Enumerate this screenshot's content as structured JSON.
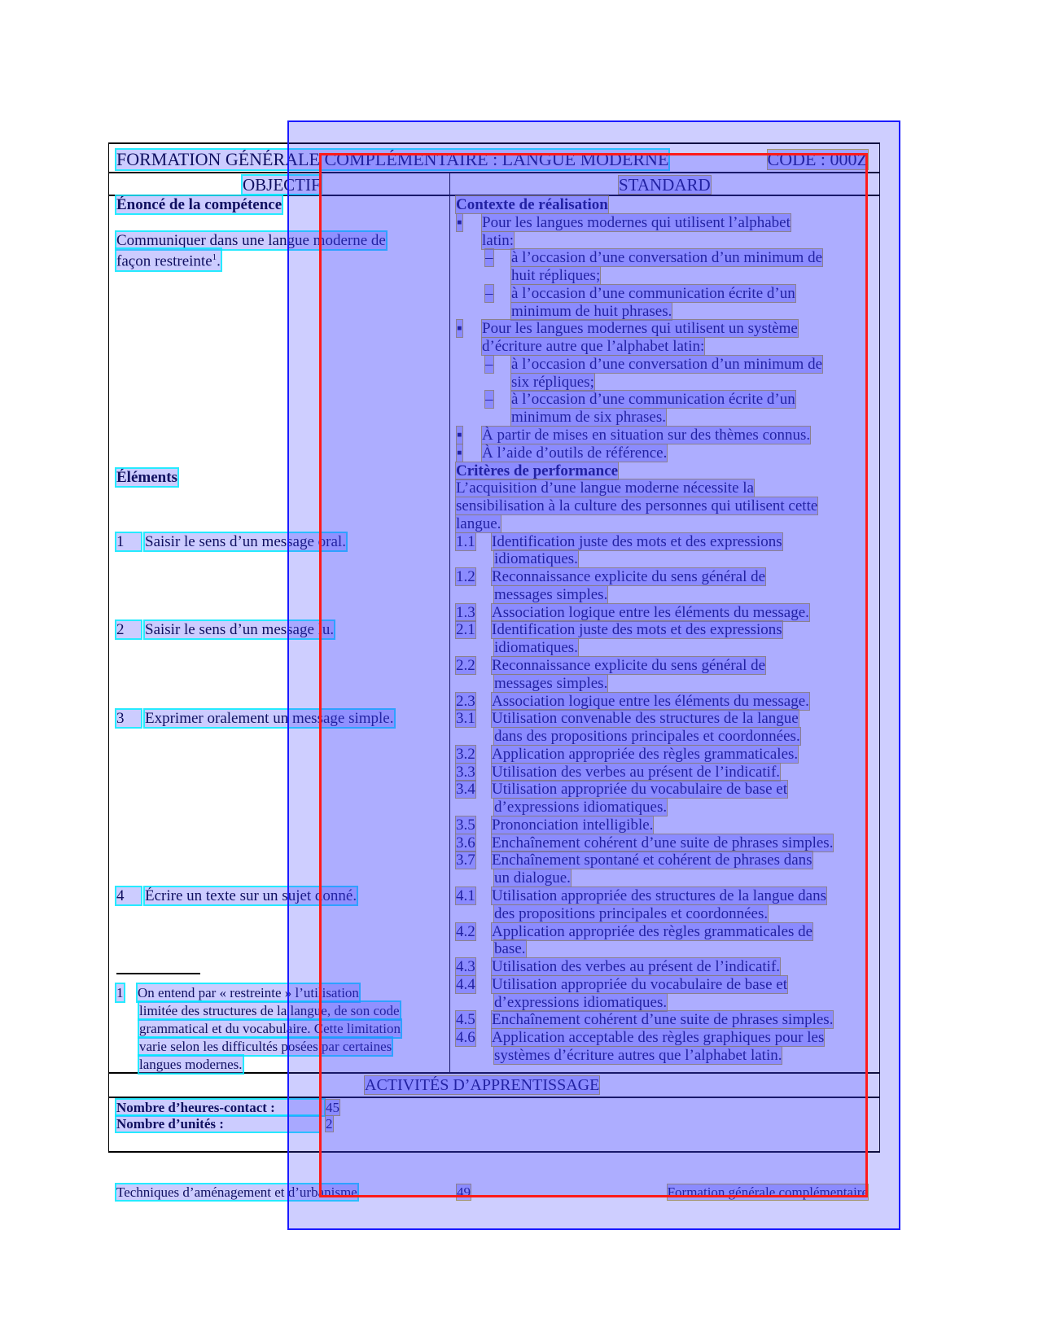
{
  "header": {
    "title": "FORMATION GÉNÉRALE COMPLÉMENTAIRE : LANGUE MODERNE",
    "code": "CODE : 000Z"
  },
  "columns": {
    "left": "OBJECTIF",
    "right": "STANDARD"
  },
  "left": {
    "heading": "Énoncé de la compétence",
    "statement": [
      "Communiquer dans une langue moderne de",
      "façon restreinte"
    ],
    "footnote_mark": "1",
    "elements_heading": "Éléments",
    "elements": [
      {
        "num": "1",
        "text": "Saisir le sens d’un message oral."
      },
      {
        "num": "2",
        "text": "Saisir le sens d’un message lu."
      },
      {
        "num": "3",
        "text": "Exprimer oralement un message simple."
      },
      {
        "num": "4",
        "text": "Écrire un texte sur un sujet donné."
      }
    ],
    "footnote": {
      "num": "1",
      "lines": [
        "On entend par « restreinte » l’utilisation",
        "limitée des structures de la langue, de son code",
        "grammatical et du vocabulaire. Cette limitation",
        "varie selon les difficultés posées par certaines",
        "langues modernes."
      ]
    }
  },
  "right": {
    "lines": [
      {
        "kind": "bold",
        "text": "Contexte de réalisation"
      },
      {
        "kind": "bullet",
        "text": "Pour les langues modernes qui utilisent l’alphabet"
      },
      {
        "kind": "i1",
        "text": "latin:"
      },
      {
        "kind": "dash",
        "text": "à l’occasion d’une conversation d’un minimum de"
      },
      {
        "kind": "i2",
        "text": "huit répliques;"
      },
      {
        "kind": "dash",
        "text": "à l’occasion d’une communication écrite d’un"
      },
      {
        "kind": "i2",
        "text": "minimum de huit phrases."
      },
      {
        "kind": "bullet",
        "text": "Pour les langues modernes qui utilisent un système"
      },
      {
        "kind": "i1",
        "text": "d’écriture autre que l’alphabet latin:"
      },
      {
        "kind": "dash",
        "text": "à l’occasion d’une conversation d’un minimum de"
      },
      {
        "kind": "i2",
        "text": "six répliques;"
      },
      {
        "kind": "dash",
        "text": "à l’occasion d’une communication écrite d’un"
      },
      {
        "kind": "i2",
        "text": "minimum de six phrases."
      },
      {
        "kind": "bullet",
        "text": "À partir de mises en situation sur des thèmes connus."
      },
      {
        "kind": "bullet",
        "text": "À l’aide d’outils de référence."
      },
      {
        "kind": "bold",
        "text": "Critères de performance"
      },
      {
        "kind": "plain",
        "text": "L’acquisition d’une langue moderne nécessite la"
      },
      {
        "kind": "plain",
        "text": "sensibilisation à la culture des personnes qui utilisent cette"
      },
      {
        "kind": "plain",
        "text": "langue."
      },
      {
        "kind": "num",
        "num": "1.1",
        "text": "Identification juste des mots et des expressions"
      },
      {
        "kind": "cont",
        "text": "idiomatiques."
      },
      {
        "kind": "num",
        "num": "1.2",
        "text": "Reconnaissance explicite du sens général de"
      },
      {
        "kind": "cont",
        "text": "messages simples."
      },
      {
        "kind": "num",
        "num": "1.3",
        "text": "Association logique entre les éléments du message."
      },
      {
        "kind": "num",
        "num": "2.1",
        "text": "Identification juste des mots et des expressions"
      },
      {
        "kind": "cont",
        "text": "idiomatiques."
      },
      {
        "kind": "num",
        "num": "2.2",
        "text": "Reconnaissance explicite du sens général de"
      },
      {
        "kind": "cont",
        "text": "messages simples."
      },
      {
        "kind": "num",
        "num": "2.3",
        "text": "Association logique entre les éléments du message."
      },
      {
        "kind": "num",
        "num": "3.1",
        "text": "Utilisation convenable des structures de la langue"
      },
      {
        "kind": "cont",
        "text": "dans des propositions principales et coordonnées."
      },
      {
        "kind": "num",
        "num": "3.2",
        "text": "Application appropriée des règles grammaticales."
      },
      {
        "kind": "num",
        "num": "3.3",
        "text": "Utilisation des verbes au présent de l’indicatif."
      },
      {
        "kind": "num",
        "num": "3.4",
        "text": "Utilisation appropriée du vocabulaire de base et"
      },
      {
        "kind": "cont",
        "text": "d’expressions idiomatiques."
      },
      {
        "kind": "num",
        "num": "3.5",
        "text": "Prononciation intelligible."
      },
      {
        "kind": "num",
        "num": "3.6",
        "text": "Enchaînement cohérent d’une suite de phrases simples."
      },
      {
        "kind": "num",
        "num": "3.7",
        "text": "Enchaînement spontané et cohérent de phrases dans"
      },
      {
        "kind": "cont",
        "text": "un dialogue."
      },
      {
        "kind": "num",
        "num": "4.1",
        "text": "Utilisation appropriée des structures de la langue dans"
      },
      {
        "kind": "cont",
        "text": "des propositions principales et coordonnées."
      },
      {
        "kind": "num",
        "num": "4.2",
        "text": "Application appropriée des règles grammaticales de"
      },
      {
        "kind": "cont",
        "text": "base."
      },
      {
        "kind": "num",
        "num": "4.3",
        "text": "Utilisation des verbes au présent de l’indicatif."
      },
      {
        "kind": "num",
        "num": "4.4",
        "text": "Utilisation appropriée du vocabulaire de base et"
      },
      {
        "kind": "cont",
        "text": "d’expressions idiomatiques."
      },
      {
        "kind": "num",
        "num": "4.5",
        "text": "Enchaînement cohérent d’une suite de phrases simples."
      },
      {
        "kind": "num",
        "num": "4.6",
        "text": "Application acceptable des règles graphiques pour les"
      },
      {
        "kind": "cont",
        "text": "systèmes d’écriture autres que l’alphabet latin."
      }
    ]
  },
  "activities": {
    "title": "ACTIVITÉS D’APPRENTISSAGE",
    "hours_label": "Nombre d’heures-contact :",
    "hours": "45",
    "units_label": "Nombre d’unités :",
    "units": "2"
  },
  "footer": {
    "left": "Techniques d’aménagement et d’urbanisme",
    "page": "49",
    "right": "Formation générale complémentaire"
  }
}
